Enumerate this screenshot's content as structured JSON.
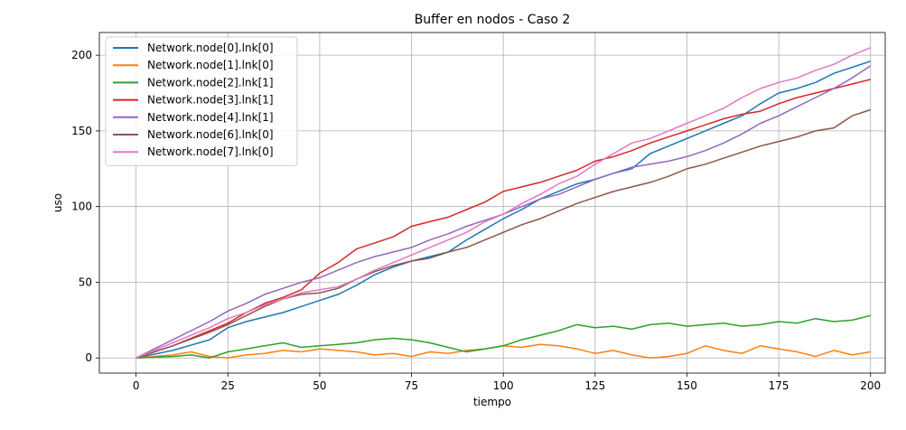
{
  "chart_data": {
    "type": "line",
    "title": "Buffer en nodos - Caso 2",
    "xlabel": "tiempo",
    "ylabel": "uso",
    "xlim": [
      -10,
      204
    ],
    "ylim": [
      -10,
      215
    ],
    "xticks": [
      0,
      25,
      50,
      75,
      100,
      125,
      150,
      175,
      200
    ],
    "yticks": [
      0,
      50,
      100,
      150,
      200
    ],
    "grid": true,
    "legend_position": "top-left",
    "series": [
      {
        "name": "Network.node[0].lnk[0]",
        "color": "#1f77b4",
        "x": [
          0,
          10,
          20,
          25,
          30,
          35,
          40,
          45,
          50,
          55,
          60,
          65,
          70,
          75,
          80,
          85,
          90,
          95,
          100,
          105,
          110,
          115,
          120,
          125,
          130,
          135,
          140,
          145,
          150,
          155,
          160,
          165,
          170,
          175,
          180,
          185,
          190,
          195,
          200
        ],
        "y": [
          0,
          5,
          12,
          20,
          24,
          27,
          30,
          34,
          38,
          42,
          48,
          55,
          60,
          64,
          67,
          70,
          78,
          85,
          92,
          98,
          105,
          110,
          115,
          118,
          122,
          125,
          135,
          140,
          145,
          150,
          155,
          160,
          168,
          175,
          178,
          182,
          188,
          192,
          196
        ]
      },
      {
        "name": "Network.node[1].lnk[0]",
        "color": "#ff7f0e",
        "x": [
          0,
          10,
          15,
          20,
          25,
          30,
          35,
          40,
          45,
          50,
          55,
          60,
          65,
          70,
          75,
          80,
          85,
          90,
          95,
          100,
          105,
          110,
          115,
          120,
          125,
          130,
          135,
          140,
          145,
          150,
          155,
          160,
          165,
          170,
          175,
          180,
          185,
          190,
          195,
          200
        ],
        "y": [
          0,
          2,
          4,
          1,
          0,
          2,
          3,
          5,
          4,
          6,
          5,
          4,
          2,
          3,
          1,
          4,
          3,
          5,
          6,
          8,
          7,
          9,
          8,
          6,
          3,
          5,
          2,
          0,
          1,
          3,
          8,
          5,
          3,
          8,
          6,
          4,
          1,
          5,
          2,
          4
        ]
      },
      {
        "name": "Network.node[2].lnk[1]",
        "color": "#2ca02c",
        "x": [
          0,
          10,
          15,
          20,
          25,
          30,
          35,
          40,
          45,
          50,
          55,
          60,
          65,
          70,
          75,
          80,
          85,
          90,
          95,
          100,
          105,
          110,
          115,
          120,
          125,
          130,
          135,
          140,
          145,
          150,
          155,
          160,
          165,
          170,
          175,
          180,
          185,
          190,
          195,
          200
        ],
        "y": [
          0,
          1,
          2,
          0,
          4,
          6,
          8,
          10,
          7,
          8,
          9,
          10,
          12,
          13,
          12,
          10,
          7,
          4,
          6,
          8,
          12,
          15,
          18,
          22,
          20,
          21,
          19,
          22,
          23,
          21,
          22,
          23,
          21,
          22,
          24,
          23,
          26,
          24,
          25,
          28
        ]
      },
      {
        "name": "Network.node[3].lnk[1]",
        "color": "#d62728",
        "x": [
          0,
          10,
          20,
          25,
          30,
          35,
          40,
          45,
          50,
          55,
          60,
          65,
          70,
          75,
          80,
          85,
          90,
          95,
          100,
          105,
          110,
          115,
          120,
          125,
          130,
          135,
          140,
          145,
          150,
          155,
          160,
          165,
          170,
          175,
          180,
          185,
          190,
          195,
          200
        ],
        "y": [
          0,
          8,
          18,
          23,
          30,
          36,
          40,
          45,
          56,
          63,
          72,
          76,
          80,
          87,
          90,
          93,
          98,
          103,
          110,
          113,
          116,
          120,
          124,
          130,
          133,
          137,
          142,
          146,
          150,
          154,
          158,
          161,
          163,
          168,
          172,
          175,
          178,
          181,
          184
        ]
      },
      {
        "name": "Network.node[4].lnk[1]",
        "color": "#9467bd",
        "x": [
          0,
          10,
          20,
          25,
          30,
          35,
          40,
          45,
          50,
          55,
          60,
          65,
          70,
          75,
          80,
          85,
          90,
          95,
          100,
          105,
          110,
          115,
          120,
          125,
          130,
          135,
          140,
          145,
          150,
          155,
          160,
          165,
          170,
          175,
          180,
          185,
          190,
          195,
          200
        ],
        "y": [
          0,
          12,
          24,
          31,
          36,
          42,
          46,
          50,
          53,
          58,
          63,
          67,
          70,
          73,
          78,
          82,
          87,
          91,
          95,
          100,
          105,
          108,
          113,
          118,
          122,
          126,
          128,
          130,
          133,
          137,
          142,
          148,
          155,
          160,
          166,
          172,
          178,
          185,
          193
        ]
      },
      {
        "name": "Network.node[6].lnk[0]",
        "color": "#8c564b",
        "x": [
          0,
          10,
          20,
          25,
          30,
          35,
          40,
          45,
          50,
          55,
          60,
          65,
          70,
          75,
          80,
          85,
          90,
          95,
          100,
          105,
          110,
          115,
          120,
          125,
          130,
          135,
          140,
          145,
          150,
          155,
          160,
          165,
          170,
          175,
          180,
          185,
          190,
          195,
          200
        ],
        "y": [
          0,
          8,
          17,
          22,
          28,
          34,
          39,
          42,
          43,
          46,
          52,
          57,
          61,
          64,
          66,
          70,
          73,
          78,
          83,
          88,
          92,
          97,
          102,
          106,
          110,
          113,
          116,
          120,
          125,
          128,
          132,
          136,
          140,
          143,
          146,
          150,
          152,
          160,
          164
        ]
      },
      {
        "name": "Network.node[7].lnk[0]",
        "color": "#e377c2",
        "x": [
          0,
          10,
          20,
          25,
          30,
          35,
          40,
          45,
          50,
          55,
          60,
          65,
          70,
          75,
          80,
          85,
          90,
          95,
          100,
          105,
          110,
          115,
          120,
          125,
          130,
          135,
          140,
          145,
          150,
          155,
          160,
          165,
          170,
          175,
          180,
          185,
          190,
          195,
          200
        ],
        "y": [
          0,
          10,
          20,
          26,
          30,
          35,
          39,
          43,
          45,
          47,
          52,
          58,
          63,
          68,
          73,
          78,
          83,
          90,
          95,
          102,
          108,
          115,
          120,
          128,
          135,
          142,
          145,
          150,
          155,
          160,
          165,
          172,
          178,
          182,
          185,
          190,
          194,
          200,
          205
        ]
      }
    ]
  }
}
